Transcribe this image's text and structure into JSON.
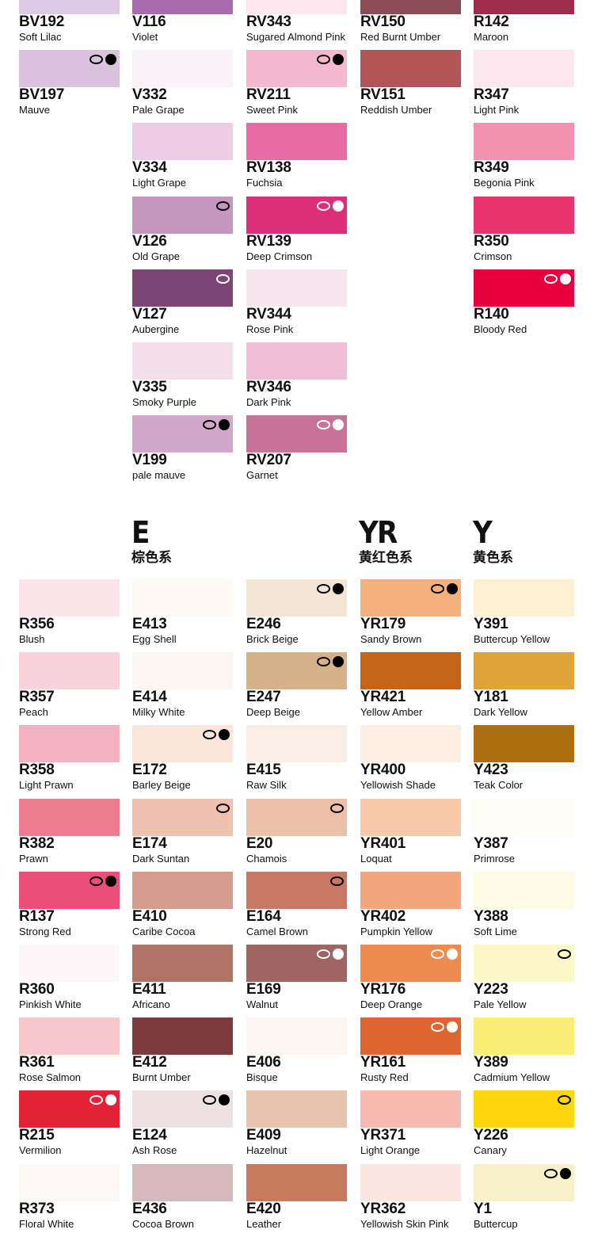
{
  "headers": [
    {
      "code": "E",
      "label": "棕色系"
    },
    {
      "code": "YR",
      "label": "黄红色系"
    },
    {
      "code": "Y",
      "label": "黄色系"
    }
  ],
  "top": [
    [
      {
        "code": "BV192",
        "name": "Soft Lilac",
        "color": "#dccbe2"
      },
      {
        "code": "BV197",
        "name": "Mauve",
        "color": "#dac3dc",
        "marks": "ring-dot"
      }
    ],
    [
      {
        "code": "V116",
        "name": "Violet",
        "color": "#a76aaa"
      },
      {
        "code": "V332",
        "name": "Pale Grape",
        "color": "#fbf2f8"
      },
      {
        "code": "V334",
        "name": "Light Grape",
        "color": "#eccde3"
      },
      {
        "code": "V126",
        "name": "Old Grape",
        "color": "#c596c0",
        "marks": "ring"
      },
      {
        "code": "V127",
        "name": "Aubergine",
        "color": "#7b4673",
        "marks": "ring-light"
      },
      {
        "code": "V335",
        "name": "Smoky Purple",
        "color": "#f3dfea"
      },
      {
        "code": "V199",
        "name": "pale mauve",
        "color": "#d1a8c9",
        "marks": "ring-dot"
      }
    ],
    [
      {
        "code": "RV343",
        "name": "Sugared Almond Pink",
        "color": "#fbe6ed"
      },
      {
        "code": "RV211",
        "name": "Sweet Pink",
        "color": "#f4b8cf",
        "marks": "ring-dot"
      },
      {
        "code": "RV138",
        "name": "Fuchsia",
        "color": "#e76ca4"
      },
      {
        "code": "RV139",
        "name": "Deep Crimson",
        "color": "#dd2e77",
        "marks": "ring-dot-light"
      },
      {
        "code": "RV344",
        "name": "Rose Pink",
        "color": "#f8e6ee"
      },
      {
        "code": "RV346",
        "name": "Dark Pink",
        "color": "#f0bed5"
      },
      {
        "code": "RV207",
        "name": "Garnet",
        "color": "#c9739a",
        "marks": "ring-dot-light"
      }
    ],
    [
      {
        "code": "RV150",
        "name": "Red Burnt Umber",
        "color": "#8c4c55"
      },
      {
        "code": "RV151",
        "name": "Reddish Umber",
        "color": "#b35459"
      }
    ],
    [
      {
        "code": "R142",
        "name": "Maroon",
        "color": "#9e2a4c"
      },
      {
        "code": "R347",
        "name": "Light Pink",
        "color": "#fbe7ee"
      },
      {
        "code": "R349",
        "name": "Begonia Pink",
        "color": "#f193b0"
      },
      {
        "code": "R350",
        "name": "Crimson",
        "color": "#e8336f"
      },
      {
        "code": "R140",
        "name": "Bloody Red",
        "color": "#e5003d",
        "marks": "ring-dot-light"
      }
    ]
  ],
  "bottom": [
    [
      {
        "code": "R356",
        "name": "Blush",
        "color": "#fbe5ea"
      },
      {
        "code": "R357",
        "name": "Peach",
        "color": "#f8d3dc"
      },
      {
        "code": "R358",
        "name": "Light Prawn",
        "color": "#f3b2c2"
      },
      {
        "code": "R382",
        "name": "Prawn",
        "color": "#ec7b8e"
      },
      {
        "code": "R137",
        "name": "Strong Red",
        "color": "#ea4f79",
        "marks": "ring-dot"
      },
      {
        "code": "R360",
        "name": "Pinkish White",
        "color": "#fdf5f7"
      },
      {
        "code": "R361",
        "name": "Rose Salmon",
        "color": "#f6c8cb"
      },
      {
        "code": "R215",
        "name": "Vermilion",
        "color": "#e32137",
        "marks": "ring-dot-light"
      },
      {
        "code": "R373",
        "name": "Floral White",
        "color": "#fdf7f6"
      }
    ],
    [
      {
        "code": "E413",
        "name": "Egg Shell",
        "color": "#fefaf3"
      },
      {
        "code": "E414",
        "name": "Milky White",
        "color": "#fdf6f2"
      },
      {
        "code": "E172",
        "name": "Barley Beige",
        "color": "#fbe5da",
        "marks": "ring-dot"
      },
      {
        "code": "E174",
        "name": "Dark Suntan",
        "color": "#f1c1af",
        "marks": "ring"
      },
      {
        "code": "E410",
        "name": "Caribe Cocoa",
        "color": "#d49c8e"
      },
      {
        "code": "E411",
        "name": "Africano",
        "color": "#b07467"
      },
      {
        "code": "E412",
        "name": "Burnt Umber",
        "color": "#7c3a3d"
      },
      {
        "code": "E124",
        "name": "Ash Rose",
        "color": "#ede1e3",
        "marks": "ring-dot"
      },
      {
        "code": "E436",
        "name": "Cocoa Brown",
        "color": "#d6b9ba"
      }
    ],
    [
      {
        "code": "E246",
        "name": "Brick Beige",
        "color": "#f2e5d2",
        "marks": "ring-dot"
      },
      {
        "code": "E247",
        "name": "Deep Beige",
        "color": "#d6b28a",
        "marks": "ring-dot"
      },
      {
        "code": "E415",
        "name": "Raw Silk",
        "color": "#f9eee5"
      },
      {
        "code": "E20",
        "name": "Chamois",
        "color": "#ebc0a6",
        "marks": "ring"
      },
      {
        "code": "E164",
        "name": "Camel Brown",
        "color": "#c97865",
        "marks": "ring"
      },
      {
        "code": "E169",
        "name": "Walnut",
        "color": "#a06461",
        "marks": "ring-dot-light"
      },
      {
        "code": "E406",
        "name": "Bisque",
        "color": "#fdf6f2"
      },
      {
        "code": "E409",
        "name": "Hazelnut",
        "color": "#e7c4af"
      },
      {
        "code": "E420",
        "name": "Leather",
        "color": "#c77a5e"
      }
    ],
    [
      {
        "code": "YR179",
        "name": "Sandy Brown",
        "color": "#f5b07b",
        "marks": "ring-dot"
      },
      {
        "code": "YR421",
        "name": "Yellow Amber",
        "color": "#c56419"
      },
      {
        "code": "YR400",
        "name": "Yellowish Shade",
        "color": "#fdeee4"
      },
      {
        "code": "YR401",
        "name": "Loquat",
        "color": "#f8c9a9"
      },
      {
        "code": "YR402",
        "name": "Pumpkin Yellow",
        "color": "#f3a57b"
      },
      {
        "code": "YR176",
        "name": "Deep Orange",
        "color": "#ef8a4f",
        "marks": "ring-dot-light"
      },
      {
        "code": "YR161",
        "name": "Rusty Red",
        "color": "#de6430",
        "marks": "ring-dot-light"
      },
      {
        "code": "YR371",
        "name": "Light Orange",
        "color": "#f6bab3"
      },
      {
        "code": "YR362",
        "name": "Yellowish Skin Pink",
        "color": "#fce6e1"
      }
    ],
    [
      {
        "code": "Y391",
        "name": "Buttercup Yellow",
        "color": "#fbf0cf"
      },
      {
        "code": "Y181",
        "name": "Dark Yellow",
        "color": "#e0a339"
      },
      {
        "code": "Y423",
        "name": "Teak Color",
        "color": "#ad6f12"
      },
      {
        "code": "Y387",
        "name": "Primrose",
        "color": "#fefdf6"
      },
      {
        "code": "Y388",
        "name": "Soft Lime",
        "color": "#fefbe5"
      },
      {
        "code": "Y223",
        "name": "Pale Yellow",
        "color": "#fdf8c8",
        "marks": "ring"
      },
      {
        "code": "Y389",
        "name": "Cadmium Yellow",
        "color": "#f9ed76"
      },
      {
        "code": "Y226",
        "name": "Canary",
        "color": "#fdd60b",
        "marks": "ring"
      },
      {
        "code": "Y1",
        "name": "Buttercup",
        "color": "#f8f0c9",
        "marks": "ring-dot"
      }
    ]
  ]
}
